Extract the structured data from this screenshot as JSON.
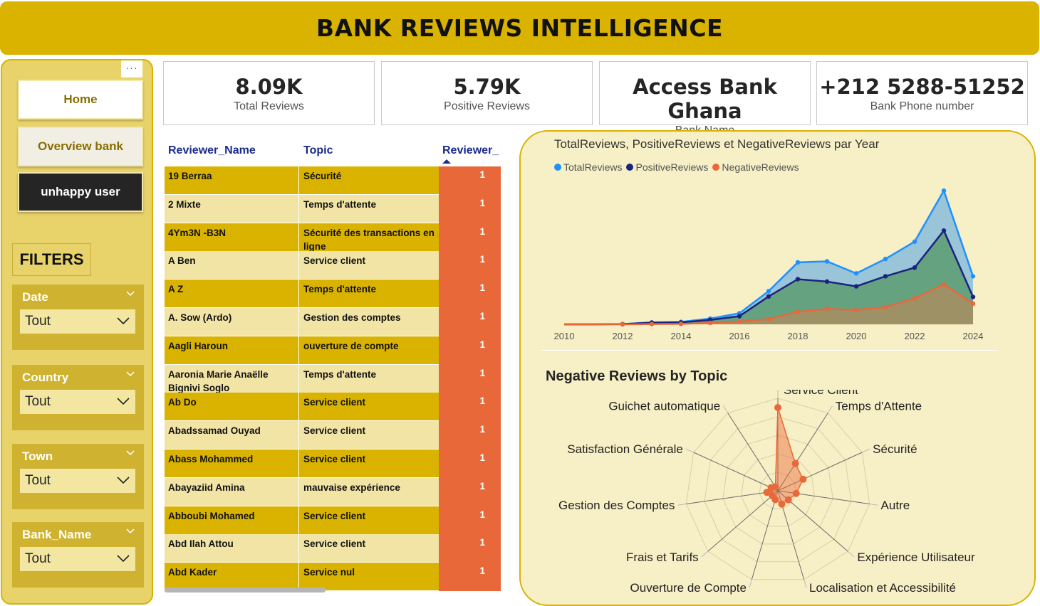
{
  "header": {
    "title": "BANK REVIEWS INTELLIGENCE"
  },
  "sidebar": {
    "more_label": "···",
    "nav": {
      "home": "Home",
      "overview": "Overview bank",
      "unhappy": "unhappy user"
    },
    "filters_title": "FILTERS",
    "filters": [
      {
        "label": "Date",
        "value": "Tout"
      },
      {
        "label": "Country",
        "value": "Tout"
      },
      {
        "label": "Town",
        "value": "Tout"
      },
      {
        "label": "Bank_Name",
        "value": "Tout"
      }
    ]
  },
  "kpis": [
    {
      "value": "8.09K",
      "label": "Total Reviews"
    },
    {
      "value": "5.79K",
      "label": "Positive Reviews"
    },
    {
      "value": "Access Bank Ghana",
      "label": "Bank Name"
    },
    {
      "value": "+212 5288-51252",
      "label": "Bank Phone number"
    }
  ],
  "table": {
    "columns": [
      "Reviewer_Name",
      "Topic",
      "Reviewer_"
    ],
    "rows": [
      {
        "name": "19 Berraa",
        "topic": "Sécurité",
        "count": "1"
      },
      {
        "name": "2 Mixte",
        "topic": "Temps d'attente",
        "count": "1"
      },
      {
        "name": "4Ym3N -B3N",
        "topic": "Sécurité des transactions en ligne",
        "count": "1"
      },
      {
        "name": "A Ben",
        "topic": "Service client",
        "count": "1"
      },
      {
        "name": "A Z",
        "topic": "Temps d'attente",
        "count": "1"
      },
      {
        "name": "A. Sow (Ardo)",
        "topic": "Gestion des comptes",
        "count": "1"
      },
      {
        "name": "Aagli Haroun",
        "topic": "ouverture de compte",
        "count": "1"
      },
      {
        "name": "Aaronia Marie Anaëlle Bignivi Soglo",
        "topic": "Temps d'attente",
        "count": "1"
      },
      {
        "name": "Ab Do",
        "topic": "Service client",
        "count": "1"
      },
      {
        "name": "Abadssamad Ouyad",
        "topic": "Service client",
        "count": "1"
      },
      {
        "name": "Abass Mohammed",
        "topic": "Service client",
        "count": "1"
      },
      {
        "name": "Abayaziid Amina",
        "topic": "mauvaise expérience",
        "count": "1"
      },
      {
        "name": "Abboubi Mohamed",
        "topic": "Service client",
        "count": "1"
      },
      {
        "name": "Abd Ilah Attou",
        "topic": "Service client",
        "count": "1"
      },
      {
        "name": "Abd Kader",
        "topic": "Service nul",
        "count": "1"
      }
    ]
  },
  "colors": {
    "total": "#1e90ff",
    "positive": "#1a237e",
    "negative": "#e8683a",
    "gold": "#d9b300"
  },
  "chart_data": [
    {
      "type": "area",
      "title": "TotalReviews, PositiveReviews et NegativeReviews par Year",
      "x": [
        2010,
        2011,
        2012,
        2013,
        2014,
        2015,
        2016,
        2017,
        2018,
        2019,
        2020,
        2021,
        2022,
        2023,
        2024
      ],
      "x_ticks": [
        "2010",
        "2012",
        "2014",
        "2016",
        "2018",
        "2020",
        "2022",
        "2024"
      ],
      "series": [
        {
          "name": "TotalReviews",
          "values": [
            0,
            0,
            5,
            40,
            50,
            120,
            230,
            690,
            1290,
            1310,
            1060,
            1360,
            1720,
            2780,
            1000
          ]
        },
        {
          "name": "PositiveReviews",
          "values": [
            0,
            0,
            5,
            35,
            40,
            90,
            170,
            580,
            940,
            890,
            790,
            1000,
            1180,
            1950,
            570
          ]
        },
        {
          "name": "NegativeReviews",
          "values": [
            0,
            0,
            0,
            5,
            10,
            30,
            60,
            110,
            260,
            320,
            300,
            360,
            540,
            830,
            430
          ]
        }
      ],
      "ylim": [
        0,
        2900
      ]
    },
    {
      "type": "radar",
      "title": "Negative Reviews by Topic",
      "categories": [
        "Service Client",
        "Temps d'Attente",
        "Sécurité",
        "Autre",
        "Expérience Utilisateur",
        "Localisation et Accessibilité",
        "Ouverture de Compte",
        "Frais et Tarifs",
        "Gestion des Comptes",
        "Satisfaction Générale",
        "Guichet automatique"
      ],
      "values": [
        0.9,
        0.35,
        0.3,
        0.2,
        0.15,
        0.15,
        0.1,
        0.08,
        0.12,
        0.08,
        0.05
      ]
    }
  ]
}
